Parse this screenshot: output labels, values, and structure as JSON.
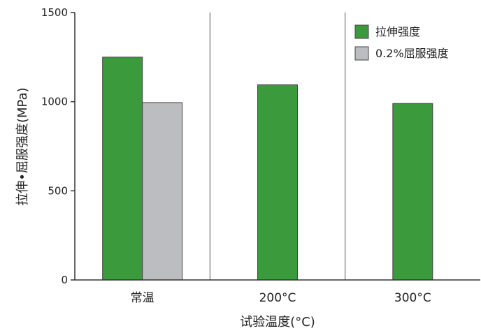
{
  "chart_data": {
    "type": "bar",
    "categories": [
      "常温",
      "200°C",
      "300°C"
    ],
    "series": [
      {
        "name": "拉伸强度",
        "color": "#3a9a3c",
        "values": [
          1250,
          1095,
          990
        ]
      },
      {
        "name": "0.2%屈服强度",
        "color": "#bcbdc1",
        "values": [
          995,
          null,
          null
        ]
      }
    ],
    "xlabel": "试验温度(°C)",
    "ylabel": "拉伸•屈服强度(MPa)",
    "ylim": [
      0,
      1500
    ],
    "yticks": [
      0,
      500,
      1000,
      1500
    ],
    "grid": false,
    "category_separators": true,
    "legend_position": "top-right"
  }
}
